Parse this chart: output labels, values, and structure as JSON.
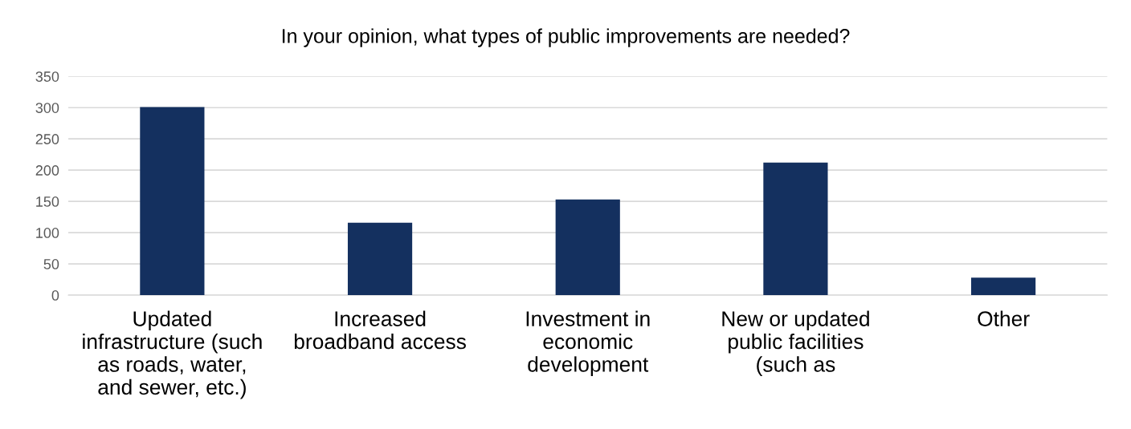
{
  "chart_data": {
    "type": "bar",
    "title": "In your opinion, what types of public improvements are needed?",
    "categories": [
      "Updated\ninfrastructure (such\nas roads, water,\nand sewer, etc.)",
      "Increased\nbroadband access",
      "Investment in\neconomic\ndevelopment",
      "New or updated\npublic facilities\n(such as",
      "Other"
    ],
    "values": [
      301,
      116,
      153,
      212,
      28
    ],
    "color": "#14305f",
    "ylim": [
      0,
      350
    ],
    "yticks": [
      0,
      50,
      100,
      150,
      200,
      250,
      300,
      350
    ],
    "grid": "y"
  }
}
